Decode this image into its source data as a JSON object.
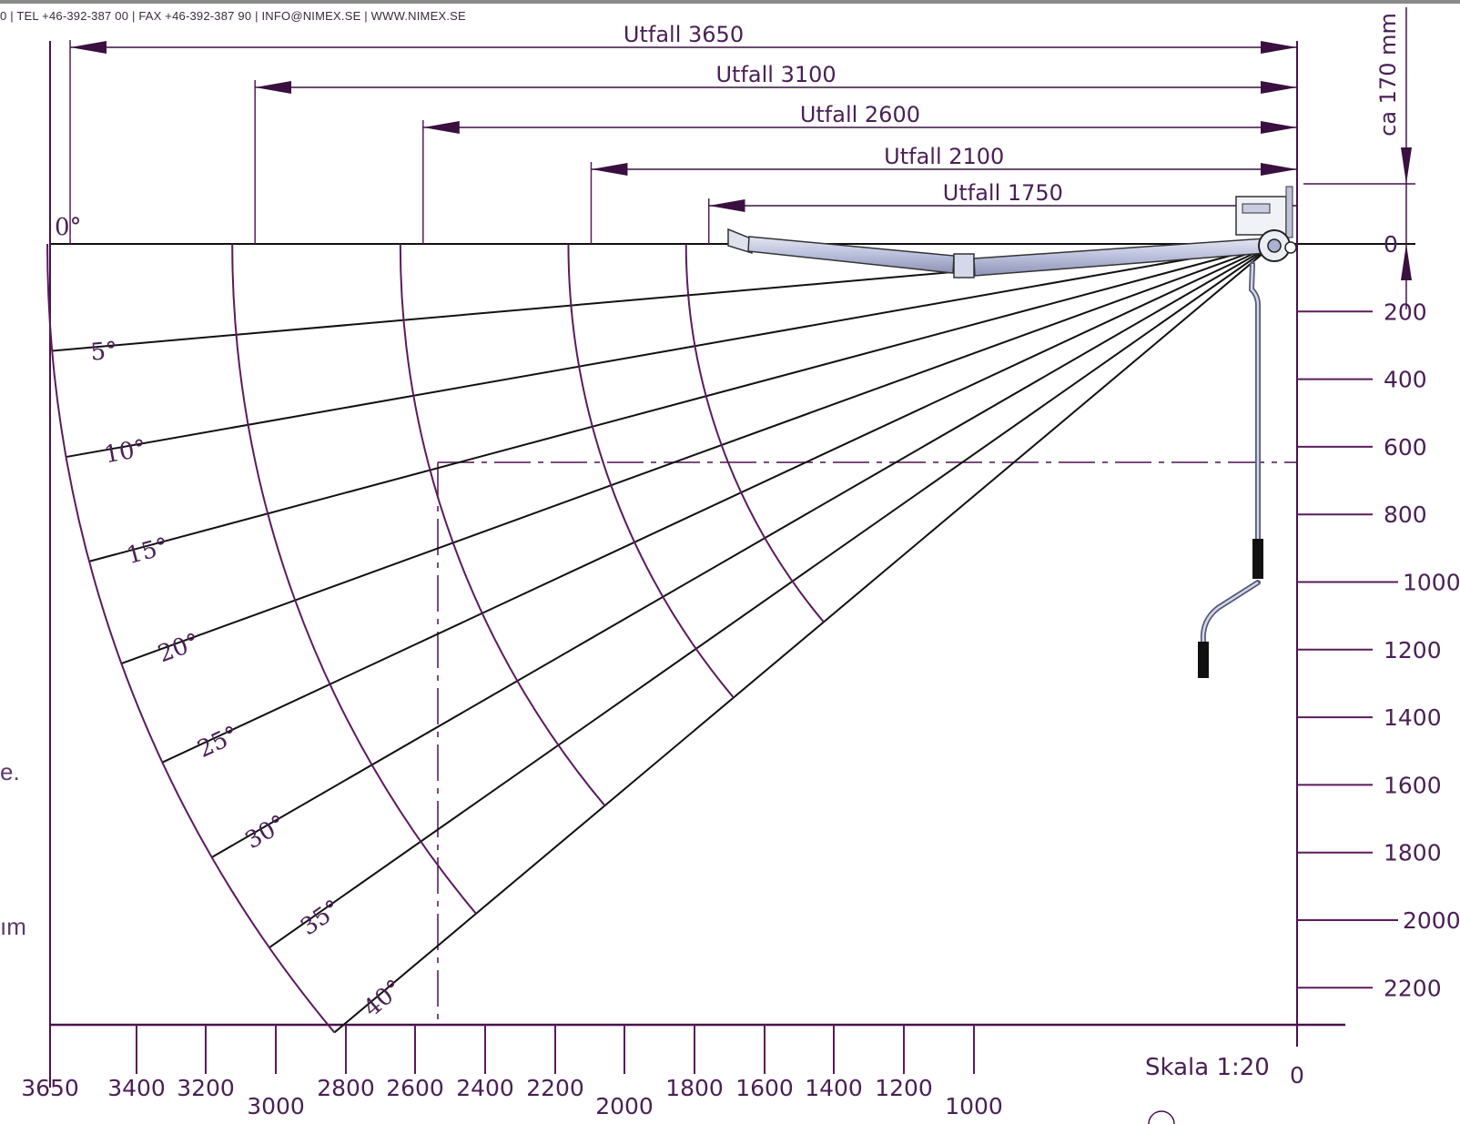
{
  "header": {
    "contact_line": "0 | TEL +46-392-387 00 | FAX +46-392-387 90 | INFO@NIMEX.SE | WWW.NIMEX.SE"
  },
  "page_fragments": {
    "left_edge_1": "e.",
    "left_edge_2": "ım"
  },
  "colors": {
    "line": "#5b1a5e",
    "ray": "#111111",
    "text": "#4a1f55",
    "arm": "#b9bedb"
  },
  "diagram": {
    "projections": [
      {
        "label": "Utfall 3650",
        "value": 3650
      },
      {
        "label": "Utfall 3100",
        "value": 3100
      },
      {
        "label": "Utfall 2600",
        "value": 2600
      },
      {
        "label": "Utfall 2100",
        "value": 2100
      },
      {
        "label": "Utfall 1750",
        "value": 1750
      }
    ],
    "angles": [
      {
        "label": "0°",
        "deg": 0
      },
      {
        "label": "5°",
        "deg": 5
      },
      {
        "label": "10°",
        "deg": 10
      },
      {
        "label": "15°",
        "deg": 15
      },
      {
        "label": "20°",
        "deg": 20
      },
      {
        "label": "25°",
        "deg": 25
      },
      {
        "label": "30°",
        "deg": 30
      },
      {
        "label": "35°",
        "deg": 35
      },
      {
        "label": "40°",
        "deg": 40
      }
    ],
    "x_ticks": [
      "3650",
      "3400",
      "3200",
      "3000",
      "2800",
      "2600",
      "2400",
      "2200",
      "2000",
      "1800",
      "1600",
      "1400",
      "1200",
      "1000",
      "0"
    ],
    "y_ticks": [
      "0",
      "200",
      "400",
      "600",
      "800",
      "1000",
      "1200",
      "1400",
      "1600",
      "1800",
      "2000",
      "2200"
    ],
    "height_note": "ca 170 mm",
    "scale": "Skala 1:20"
  }
}
